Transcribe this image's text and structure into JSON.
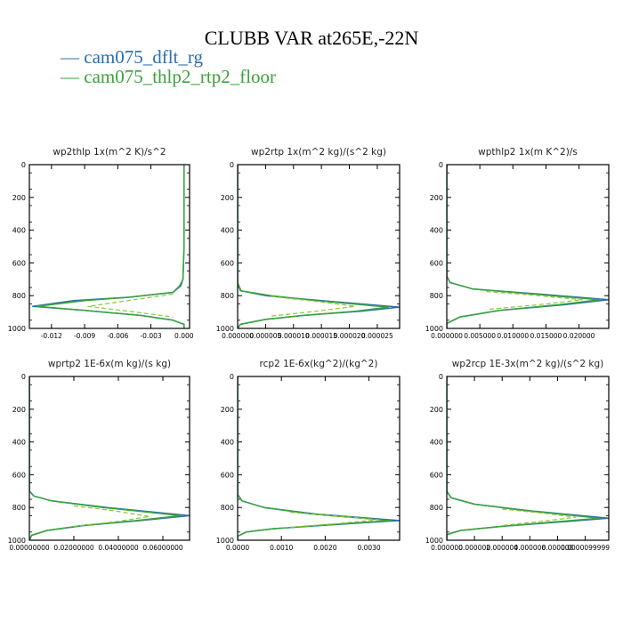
{
  "figure": {
    "title": "CLUBB VAR at265E,-22N",
    "legend": [
      {
        "label": "— cam075_dflt_rg",
        "color": "#2b6fae"
      },
      {
        "label": "— cam075_thlp2_rtp2_floor",
        "color": "#3aa23a"
      }
    ]
  },
  "chart_data": [
    {
      "type": "line",
      "title": "wp2thlp   1x(m^2 K)/s^2",
      "xlim": [
        -0.014,
        0.0005
      ],
      "ylim": [
        1000,
        0
      ],
      "xticks": [
        -0.012,
        -0.009,
        -0.006,
        -0.003,
        0.0
      ],
      "xtick_labels": [
        "-0.012",
        "-0.009",
        "-0.006",
        "-0.003",
        "0.000"
      ],
      "yticks": [
        0,
        200,
        400,
        600,
        800,
        1000
      ],
      "ytick_labels": [
        "0",
        "200",
        "400",
        "600",
        "800",
        "1000"
      ],
      "series": [
        {
          "name": "cam075_dflt_rg",
          "color": "#2b6fae",
          "dash": "",
          "points": [
            [
              0,
              0
            ],
            [
              0,
              100
            ],
            [
              0,
              300
            ],
            [
              0,
              500
            ],
            [
              -0.0001,
              700
            ],
            [
              -0.0003,
              740
            ],
            [
              -0.001,
              780
            ],
            [
              -0.005,
              810
            ],
            [
              -0.01,
              830
            ],
            [
              -0.0137,
              865
            ],
            [
              -0.009,
              890
            ],
            [
              -0.004,
              920
            ],
            [
              -0.001,
              950
            ],
            [
              0,
              975
            ],
            [
              0,
              1000
            ]
          ]
        },
        {
          "name": "cam075_thlp2_rtp2_floor",
          "color": "#3aa23a",
          "dash": "",
          "points": [
            [
              0,
              0
            ],
            [
              0,
              100
            ],
            [
              0,
              300
            ],
            [
              0,
              500
            ],
            [
              -0.0001,
              700
            ],
            [
              -0.0004,
              740
            ],
            [
              -0.001,
              780
            ],
            [
              -0.005,
              810
            ],
            [
              -0.009,
              830
            ],
            [
              -0.0133,
              865
            ],
            [
              -0.009,
              890
            ],
            [
              -0.004,
              920
            ],
            [
              -0.001,
              950
            ],
            [
              0,
              975
            ],
            [
              0,
              1000
            ]
          ]
        },
        {
          "name": "",
          "color": "#8cc63f",
          "dash": "5,3",
          "points": [
            [
              -0.001,
              790
            ],
            [
              -0.005,
              830
            ],
            [
              -0.0087,
              865
            ],
            [
              -0.005,
              895
            ],
            [
              -0.001,
              930
            ]
          ]
        }
      ]
    },
    {
      "type": "line",
      "title": "wp2rtp   1x(m^2 kg)/(s^2 kg)",
      "xlim": [
        0,
        2.9e-05
      ],
      "ylim": [
        1000,
        0
      ],
      "xticks": [
        0,
        5e-06,
        1e-05,
        1.5e-05,
        2e-05,
        2.5e-05
      ],
      "xtick_labels": [
        "0.000000",
        "0.000005",
        "0.000010",
        "0.000015",
        "0.000020",
        "0.000025"
      ],
      "yticks": [
        0,
        200,
        400,
        600,
        800,
        1000
      ],
      "ytick_labels": [
        "0",
        "200",
        "400",
        "600",
        "800",
        "1000"
      ],
      "series": [
        {
          "name": "cam075_dflt_rg",
          "color": "#2b6fae",
          "dash": "",
          "points": [
            [
              0,
              0
            ],
            [
              0,
              500
            ],
            [
              0,
              720
            ],
            [
              5e-07,
              770
            ],
            [
              5e-06,
              800
            ],
            [
              1.5e-05,
              830
            ],
            [
              2.9e-05,
              870
            ],
            [
              2.2e-05,
              895
            ],
            [
              1.2e-05,
              920
            ],
            [
              5e-06,
              945
            ],
            [
              5e-07,
              975
            ],
            [
              0,
              1000
            ]
          ]
        },
        {
          "name": "cam075_thlp2_rtp2_floor",
          "color": "#3aa23a",
          "dash": "",
          "points": [
            [
              0,
              0
            ],
            [
              0,
              500
            ],
            [
              0,
              720
            ],
            [
              6e-07,
              770
            ],
            [
              6e-06,
              800
            ],
            [
              1.4e-05,
              830
            ],
            [
              2.7e-05,
              870
            ],
            [
              2.1e-05,
              895
            ],
            [
              1.2e-05,
              920
            ],
            [
              5e-06,
              945
            ],
            [
              5e-07,
              975
            ],
            [
              0,
              1000
            ]
          ]
        },
        {
          "name": "",
          "color": "#8cc63f",
          "dash": "5,3",
          "points": [
            [
              6e-06,
              805
            ],
            [
              1.4e-05,
              835
            ],
            [
              2.1e-05,
              865
            ],
            [
              1.4e-05,
              895
            ],
            [
              6e-06,
              925
            ]
          ]
        }
      ]
    },
    {
      "type": "line",
      "title": "wpthlp2   1x(m K^2)/s",
      "xlim": [
        0,
        0.0245
      ],
      "ylim": [
        1000,
        0
      ],
      "xticks": [
        0,
        0.005,
        0.01,
        0.015,
        0.02
      ],
      "xtick_labels": [
        "0.000000",
        "0.005000",
        "0.010000",
        "0.015000",
        "0.020000"
      ],
      "yticks": [
        0,
        200,
        400,
        600,
        800,
        1000
      ],
      "ytick_labels": [
        "0",
        "200",
        "400",
        "600",
        "800",
        "1000"
      ],
      "series": [
        {
          "name": "cam075_dflt_rg",
          "color": "#2b6fae",
          "dash": "",
          "points": [
            [
              0,
              0
            ],
            [
              0,
              500
            ],
            [
              0,
              680
            ],
            [
              0.0005,
              720
            ],
            [
              0.004,
              760
            ],
            [
              0.014,
              790
            ],
            [
              0.0245,
              825
            ],
            [
              0.018,
              855
            ],
            [
              0.008,
              890
            ],
            [
              0.002,
              930
            ],
            [
              0,
              970
            ],
            [
              0,
              1000
            ]
          ]
        },
        {
          "name": "cam075_thlp2_rtp2_floor",
          "color": "#3aa23a",
          "dash": "",
          "points": [
            [
              0,
              0
            ],
            [
              0,
              500
            ],
            [
              0,
              680
            ],
            [
              0.0005,
              720
            ],
            [
              0.004,
              760
            ],
            [
              0.013,
              790
            ],
            [
              0.023,
              825
            ],
            [
              0.017,
              855
            ],
            [
              0.008,
              890
            ],
            [
              0.002,
              930
            ],
            [
              0,
              970
            ],
            [
              0,
              1000
            ]
          ]
        },
        {
          "name": "",
          "color": "#8cc63f",
          "dash": "5,3",
          "points": [
            [
              0.006,
              775
            ],
            [
              0.014,
              800
            ],
            [
              0.0205,
              825
            ],
            [
              0.014,
              855
            ],
            [
              0.006,
              885
            ]
          ]
        }
      ]
    },
    {
      "type": "line",
      "title": "wprtp2   1E-6x(m kg)/(s kg)",
      "xlim": [
        0,
        0.072
      ],
      "ylim": [
        1000,
        0
      ],
      "xticks": [
        0,
        0.02,
        0.04,
        0.06
      ],
      "xtick_labels": [
        "0.00000000",
        "0.02000000",
        "0.04000000",
        "0.06000000"
      ],
      "yticks": [
        0,
        200,
        400,
        600,
        800,
        1000
      ],
      "ytick_labels": [
        "0",
        "200",
        "400",
        "600",
        "800",
        "1000"
      ],
      "series": [
        {
          "name": "cam075_dflt_rg",
          "color": "#2b6fae",
          "dash": "",
          "points": [
            [
              0,
              0
            ],
            [
              0,
              500
            ],
            [
              0,
              700
            ],
            [
              0.002,
              730
            ],
            [
              0.01,
              760
            ],
            [
              0.035,
              800
            ],
            [
              0.072,
              850
            ],
            [
              0.05,
              880
            ],
            [
              0.025,
              910
            ],
            [
              0.008,
              940
            ],
            [
              0.001,
              970
            ],
            [
              0,
              1000
            ]
          ]
        },
        {
          "name": "cam075_thlp2_rtp2_floor",
          "color": "#3aa23a",
          "dash": "",
          "points": [
            [
              0,
              0
            ],
            [
              0,
              500
            ],
            [
              0,
              700
            ],
            [
              0.002,
              730
            ],
            [
              0.01,
              760
            ],
            [
              0.033,
              800
            ],
            [
              0.068,
              850
            ],
            [
              0.048,
              880
            ],
            [
              0.024,
              910
            ],
            [
              0.008,
              940
            ],
            [
              0.001,
              970
            ],
            [
              0,
              1000
            ]
          ]
        },
        {
          "name": "",
          "color": "#8cc63f",
          "dash": "5,3",
          "points": [
            [
              0.02,
              790
            ],
            [
              0.038,
              820
            ],
            [
              0.054,
              855
            ],
            [
              0.04,
              885
            ],
            [
              0.02,
              915
            ]
          ]
        }
      ]
    },
    {
      "type": "line",
      "title": "rcp2   1E-6x(kg^2)/(kg^2)",
      "xlim": [
        0,
        0.0037
      ],
      "ylim": [
        1000,
        0
      ],
      "xticks": [
        0,
        0.001,
        0.002,
        0.003
      ],
      "xtick_labels": [
        "0.0000",
        "0.0010",
        "0.0020",
        "0.0030"
      ],
      "yticks": [
        0,
        200,
        400,
        600,
        800,
        1000
      ],
      "ytick_labels": [
        "0",
        "200",
        "400",
        "600",
        "800",
        "1000"
      ],
      "series": [
        {
          "name": "cam075_dflt_rg",
          "color": "#2b6fae",
          "dash": "",
          "points": [
            [
              0,
              0
            ],
            [
              0,
              500
            ],
            [
              0,
              720
            ],
            [
              0.0001,
              760
            ],
            [
              0.0006,
              800
            ],
            [
              0.0018,
              840
            ],
            [
              0.0037,
              880
            ],
            [
              0.0022,
              905
            ],
            [
              0.0008,
              930
            ],
            [
              0.0002,
              950
            ],
            [
              0,
              975
            ],
            [
              0,
              1000
            ]
          ]
        },
        {
          "name": "cam075_thlp2_rtp2_floor",
          "color": "#3aa23a",
          "dash": "",
          "points": [
            [
              0,
              0
            ],
            [
              0,
              500
            ],
            [
              0,
              720
            ],
            [
              0.0001,
              760
            ],
            [
              0.0006,
              800
            ],
            [
              0.0017,
              840
            ],
            [
              0.0035,
              880
            ],
            [
              0.0021,
              905
            ],
            [
              0.0008,
              930
            ],
            [
              0.0002,
              950
            ],
            [
              0,
              975
            ],
            [
              0,
              1000
            ]
          ]
        },
        {
          "name": "",
          "color": "#8cc63f",
          "dash": "5,3",
          "points": [
            [
              0.0012,
              830
            ],
            [
              0.0024,
              855
            ],
            [
              0.0032,
              875
            ],
            [
              0.0022,
              900
            ],
            [
              0.001,
              925
            ]
          ]
        }
      ]
    },
    {
      "type": "line",
      "title": "wp2rcp   1E-3x(m^2 kg)/(s^2 kg)",
      "xlim": [
        0,
        1.17e-05
      ],
      "ylim": [
        1000,
        0
      ],
      "xticks": [
        0,
        2e-06,
        4e-06,
        6e-06,
        8e-06,
        1e-05
      ],
      "xtick_labels": [
        "0.000000",
        "0.000002",
        "0.000004",
        "0.000006",
        "0.000008",
        "0.0000099999"
      ],
      "yticks": [
        0,
        200,
        400,
        600,
        800,
        1000
      ],
      "ytick_labels": [
        "0",
        "200",
        "400",
        "600",
        "800",
        "1000"
      ],
      "series": [
        {
          "name": "cam075_dflt_rg",
          "color": "#2b6fae",
          "dash": "",
          "points": [
            [
              0,
              0
            ],
            [
              0,
              500
            ],
            [
              0,
              700
            ],
            [
              3e-07,
              740
            ],
            [
              2e-06,
              780
            ],
            [
              6e-06,
              820
            ],
            [
              1.17e-05,
              865
            ],
            [
              8e-06,
              890
            ],
            [
              4e-06,
              915
            ],
            [
              1e-06,
              940
            ],
            [
              0,
              965
            ],
            [
              0,
              1000
            ]
          ]
        },
        {
          "name": "cam075_thlp2_rtp2_floor",
          "color": "#3aa23a",
          "dash": "",
          "points": [
            [
              0,
              0
            ],
            [
              0,
              500
            ],
            [
              0,
              700
            ],
            [
              3e-07,
              740
            ],
            [
              2e-06,
              780
            ],
            [
              5.8e-06,
              820
            ],
            [
              1.1e-05,
              865
            ],
            [
              7.5e-06,
              890
            ],
            [
              4e-06,
              915
            ],
            [
              1e-06,
              940
            ],
            [
              0,
              965
            ],
            [
              0,
              1000
            ]
          ]
        },
        {
          "name": "",
          "color": "#8cc63f",
          "dash": "5,3",
          "points": [
            [
              4e-06,
              810
            ],
            [
              7e-06,
              835
            ],
            [
              9.3e-06,
              860
            ],
            [
              6.8e-06,
              885
            ],
            [
              4e-06,
              910
            ]
          ]
        }
      ]
    }
  ]
}
